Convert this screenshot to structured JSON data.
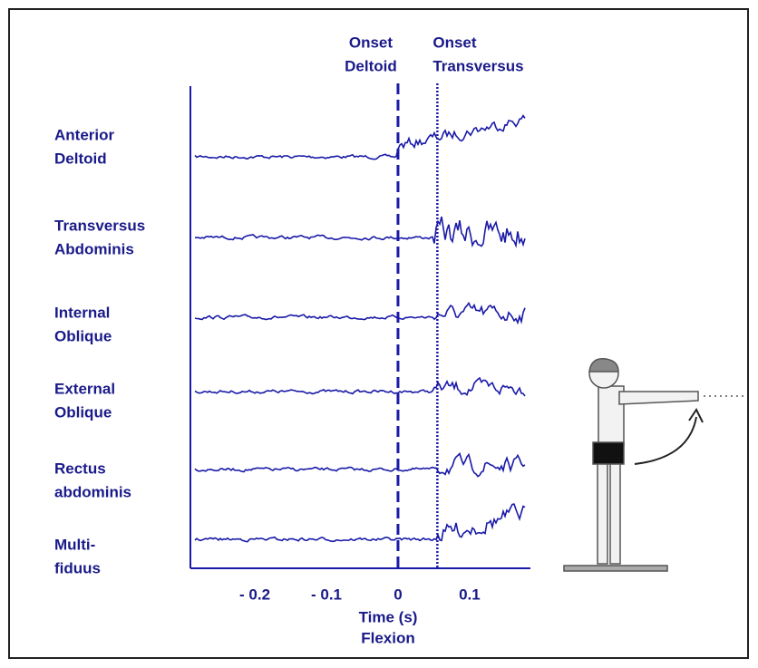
{
  "chart_data": {
    "type": "emg-traces",
    "rows": [
      {
        "lines": [
          "Anterior",
          "Deltoid"
        ]
      },
      {
        "lines": [
          "Transversus",
          "Abdominis"
        ]
      },
      {
        "lines": [
          "Internal",
          "Oblique"
        ]
      },
      {
        "lines": [
          "External",
          "Oblique"
        ]
      },
      {
        "lines": [
          "Rectus",
          "abdominis"
        ]
      },
      {
        "lines": [
          "Multi-",
          "fiduus"
        ]
      }
    ],
    "markers": [
      {
        "lines": [
          "Onset",
          "Deltoid"
        ],
        "x": 0,
        "style": "dashed"
      },
      {
        "lines": [
          "Onset",
          "Transversus"
        ],
        "x": 0.055,
        "style": "dotted"
      }
    ],
    "xlim": [
      -0.29,
      0.185
    ],
    "xticks": [
      {
        "value": -0.2,
        "label": "- 0.2"
      },
      {
        "value": -0.1,
        "label": "- 0.1"
      },
      0,
      0.1
    ],
    "xlabel": [
      "Time (s)",
      "Flexion"
    ],
    "color": "#1a1aa8"
  }
}
